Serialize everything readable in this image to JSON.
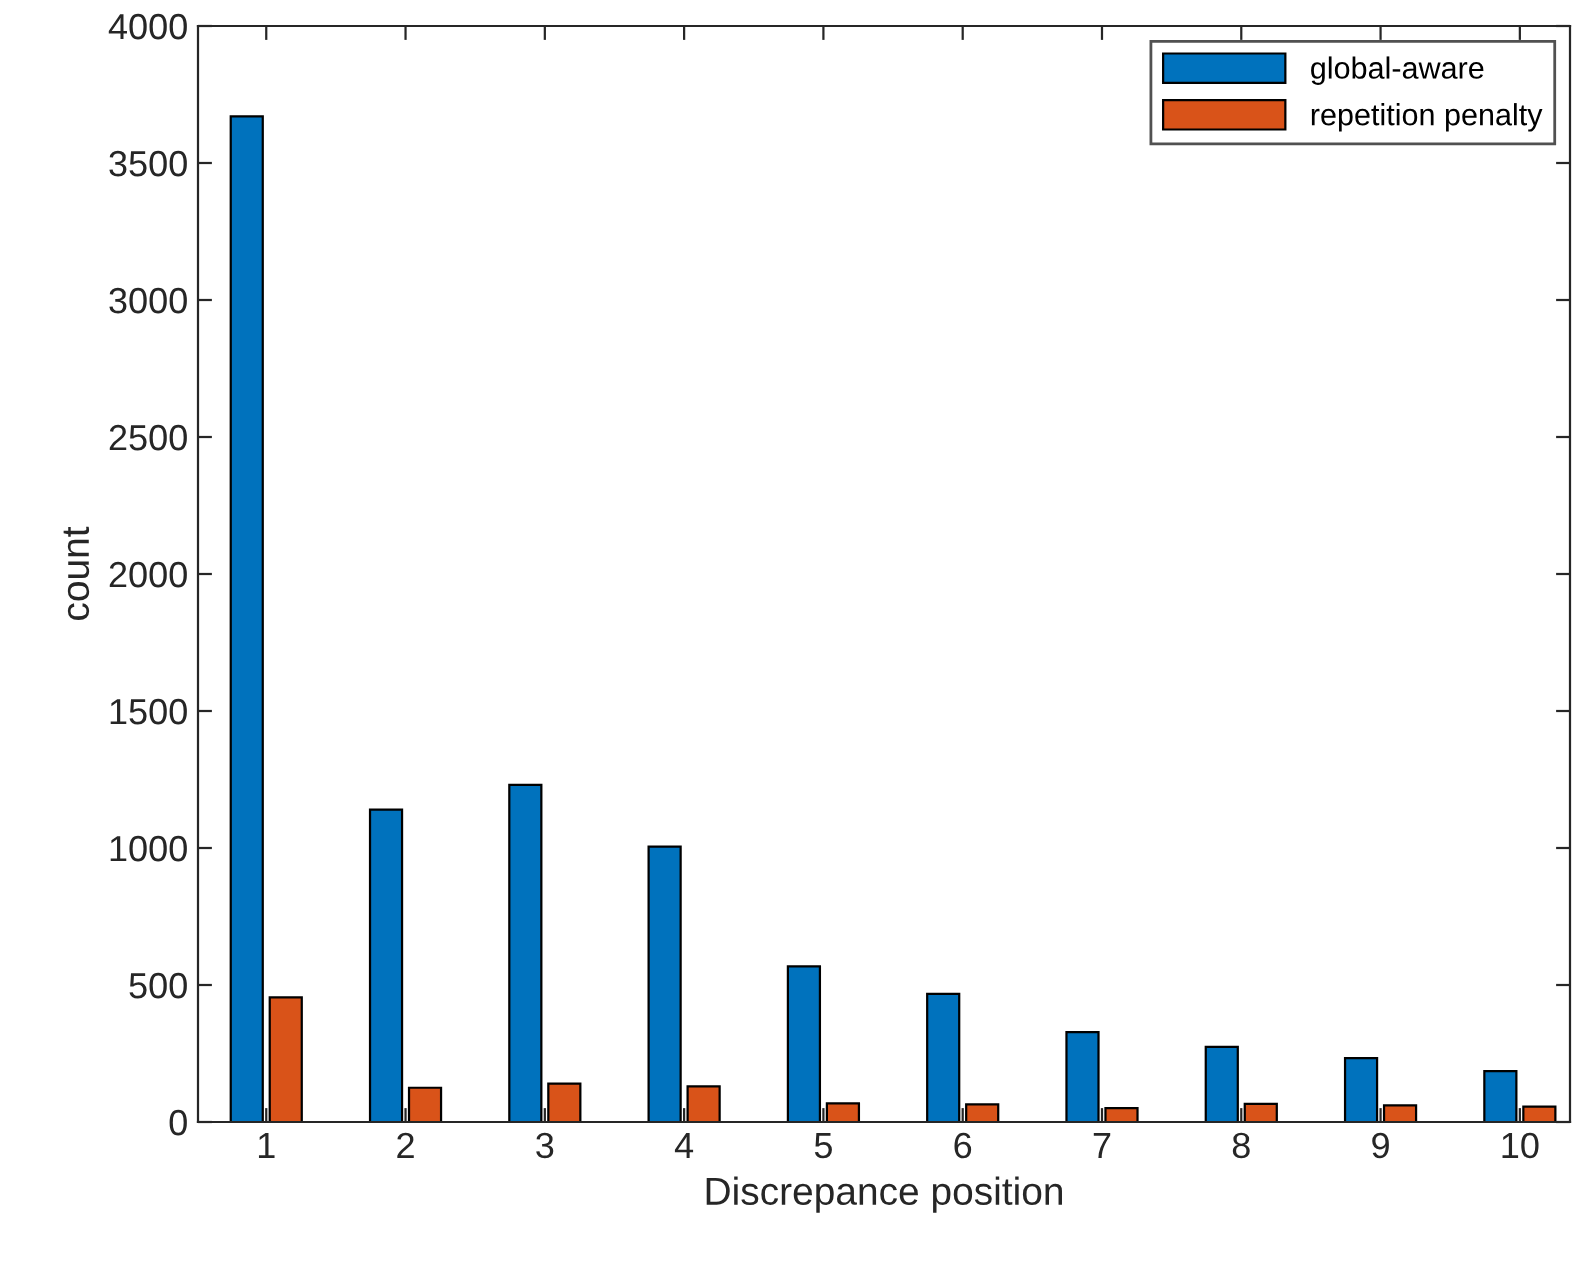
{
  "chart_data": {
    "type": "bar",
    "xlabel": "Discrepance position",
    "ylabel": "count",
    "categories": [
      "1",
      "2",
      "3",
      "4",
      "5",
      "6",
      "7",
      "8",
      "9",
      "10"
    ],
    "series": [
      {
        "name": "global-aware",
        "color": "#0072bd",
        "values": [
          3670,
          1140,
          1230,
          1005,
          568,
          468,
          328,
          274,
          233,
          186
        ]
      },
      {
        "name": "repetition penalty",
        "color": "#d95319",
        "values": [
          455,
          125,
          140,
          130,
          68,
          64,
          51,
          66,
          61,
          56
        ]
      }
    ],
    "ylim": [
      0,
      4000
    ],
    "yticks": [
      0,
      500,
      1000,
      1500,
      2000,
      2500,
      3000,
      3500,
      4000
    ],
    "grid": false,
    "legend": "top right"
  }
}
